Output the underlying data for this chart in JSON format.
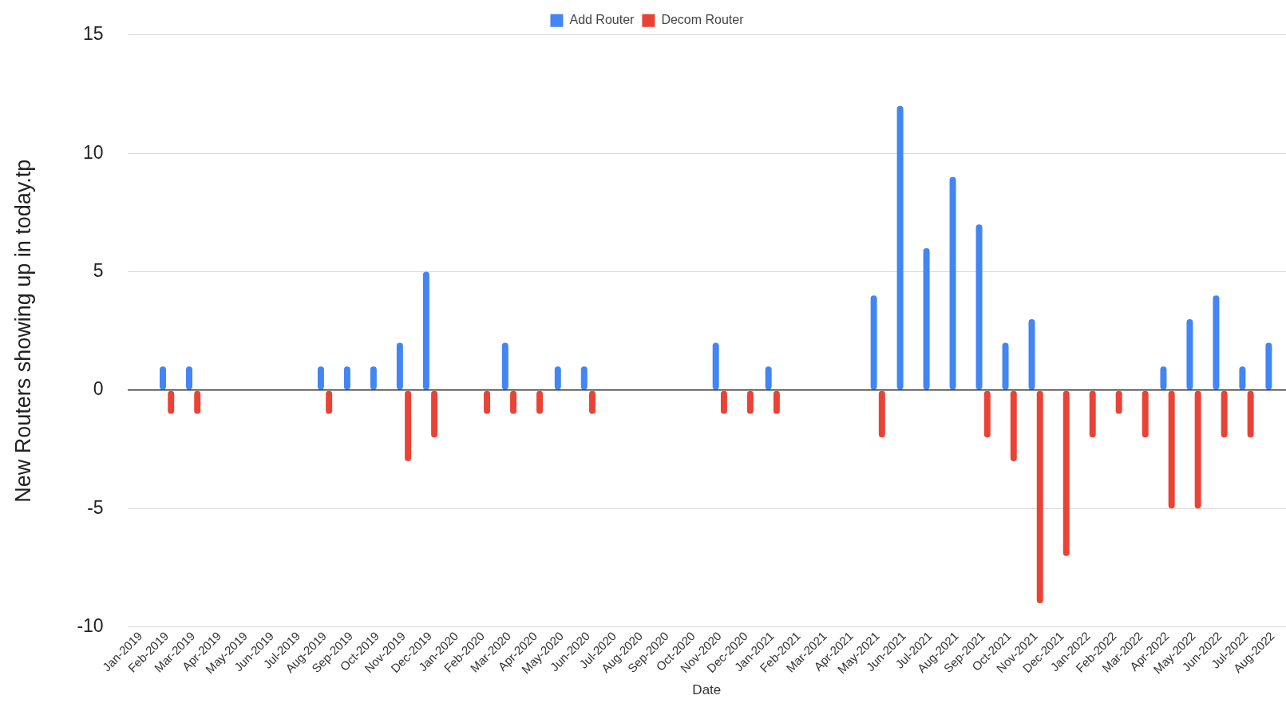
{
  "chart_data": {
    "type": "bar",
    "xlabel": "Date",
    "ylabel": "New Routers showing up in today.tp",
    "categories": [
      "Jan-2019",
      "Feb-2019",
      "Mar-2019",
      "Apr-2019",
      "May-2019",
      "Jun-2019",
      "Jul-2019",
      "Aug-2019",
      "Sep-2019",
      "Oct-2019",
      "Nov-2019",
      "Dec-2019",
      "Jan-2020",
      "Feb-2020",
      "Mar-2020",
      "Apr-2020",
      "May-2020",
      "Jun-2020",
      "Jul-2020",
      "Aug-2020",
      "Sep-2020",
      "Oct-2020",
      "Nov-2020",
      "Dec-2020",
      "Jan-2021",
      "Feb-2021",
      "Mar-2021",
      "Apr-2021",
      "May-2021",
      "Jun-2021",
      "Jul-2021",
      "Aug-2021",
      "Sep-2021",
      "Oct-2021",
      "Nov-2021",
      "Dec-2021",
      "Jan-2022",
      "Feb-2022",
      "Mar-2022",
      "Apr-2022",
      "May-2022",
      "Jun-2022",
      "Jul-2022",
      "Aug-2022"
    ],
    "series": [
      {
        "name": "Add Router",
        "color": "#4285f4",
        "values": [
          null,
          1,
          1,
          null,
          null,
          null,
          null,
          1,
          1,
          1,
          2,
          5,
          null,
          null,
          2,
          null,
          1,
          1,
          null,
          null,
          null,
          null,
          2,
          null,
          1,
          null,
          null,
          null,
          4,
          12,
          6,
          9,
          7,
          2,
          3,
          null,
          null,
          null,
          null,
          1,
          3,
          4,
          1,
          2
        ]
      },
      {
        "name": "Decom Router",
        "color": "#ea4335",
        "values": [
          null,
          -1,
          -1,
          null,
          null,
          null,
          null,
          -1,
          null,
          null,
          -3,
          -2,
          null,
          -1,
          -1,
          -1,
          null,
          -1,
          null,
          null,
          null,
          null,
          -1,
          -1,
          -1,
          null,
          null,
          null,
          -2,
          null,
          null,
          null,
          -2,
          -3,
          -9,
          -7,
          -2,
          -1,
          -2,
          -5,
          -5,
          -2,
          -2,
          null
        ]
      }
    ],
    "ylim": [
      -10,
      15
    ],
    "yticks": [
      -10,
      -5,
      0,
      5,
      10,
      15
    ],
    "grid": "y",
    "legend": "top"
  }
}
